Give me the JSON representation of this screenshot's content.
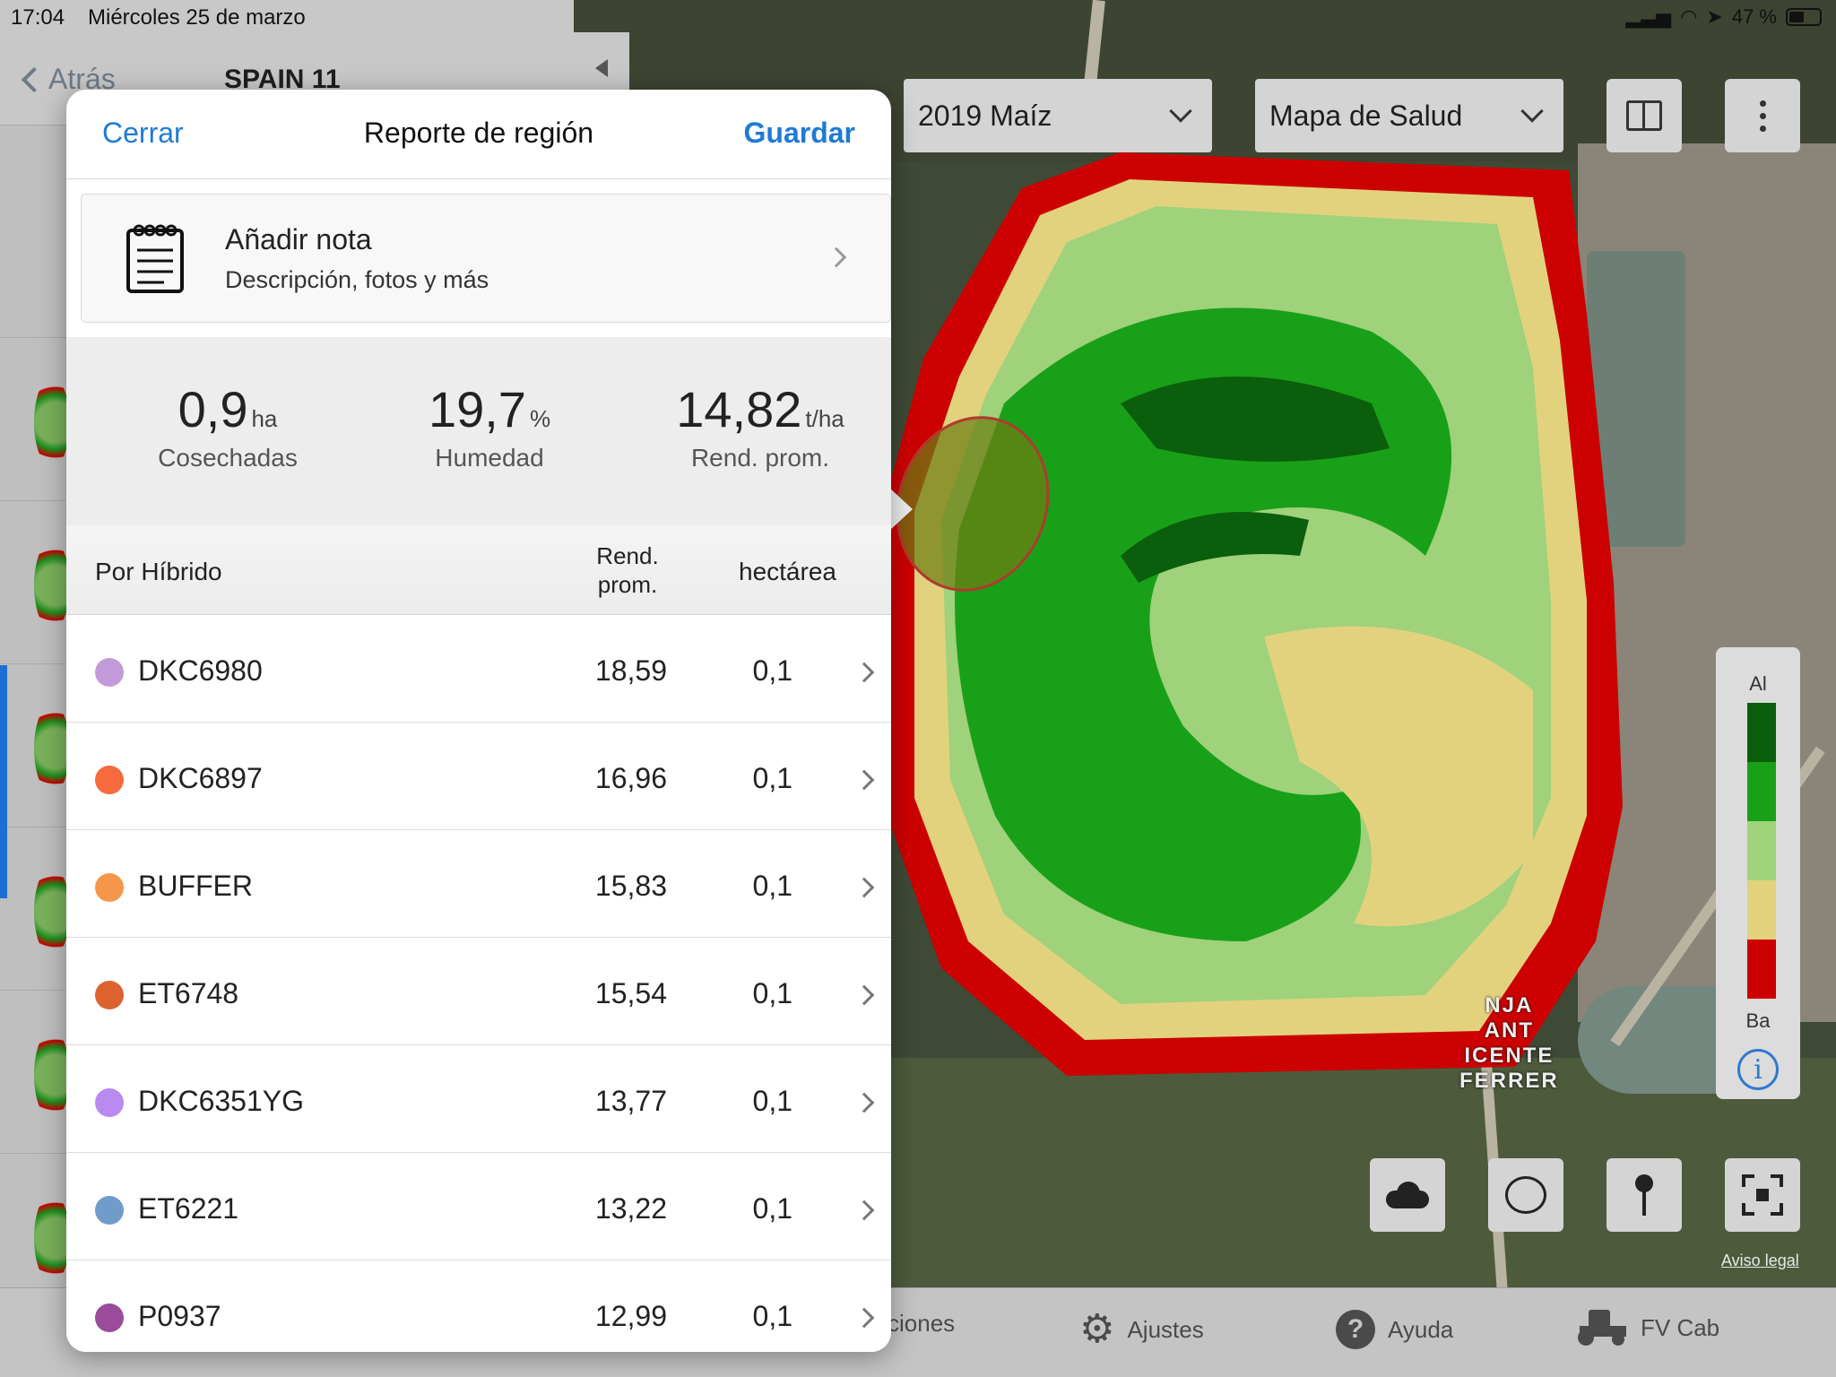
{
  "status_bar": {
    "time": "17:04",
    "date": "Miércoles 25 de marzo",
    "battery": "47 %"
  },
  "left_panel": {
    "back_label": "Atrás",
    "field_name": "SPAIN 11"
  },
  "map_controls": {
    "season_dropdown": "2019 Maíz",
    "layer_dropdown": "Mapa de Salud",
    "split_view_icon": "split-view-icon",
    "more_icon": "more-vertical-icon"
  },
  "legend": {
    "high_label": "Al",
    "low_label": "Ba",
    "info_label": "i",
    "colors": [
      "#0b5e0b",
      "#19a019",
      "#9fd27a",
      "#e2d27e",
      "#cc0000"
    ]
  },
  "map_buttons": {
    "weather_icon": "cloud-icon",
    "lasso_icon": "lasso-icon",
    "pin_icon": "pin-icon",
    "fit_icon": "fit-to-field-icon",
    "legal": "Aviso legal",
    "place_label": [
      "NJA",
      "ANT",
      "ICENTE",
      "FERRER"
    ]
  },
  "tab_bar": {
    "items": [
      {
        "label": "ciones"
      },
      {
        "label": "Ajustes",
        "icon": "gear-icon"
      },
      {
        "label": "Ayuda",
        "icon": "question-icon"
      },
      {
        "label": "FV Cab",
        "icon": "tractor-icon"
      }
    ]
  },
  "modal": {
    "close_label": "Cerrar",
    "title": "Reporte de región",
    "save_label": "Guardar",
    "note": {
      "title": "Añadir nota",
      "subtitle": "Descripción, fotos y más",
      "icon": "notepad-icon"
    },
    "stats": [
      {
        "value": "0,9",
        "unit": "ha",
        "label": "Cosechadas"
      },
      {
        "value": "19,7",
        "unit": "%",
        "label": "Humedad"
      },
      {
        "value": "14,82",
        "unit": "t/ha",
        "label": "Rend. prom."
      }
    ],
    "table": {
      "col_hybrid": "Por Híbrido",
      "col_yield": "Rend. prom.",
      "col_area": "hectárea",
      "rows": [
        {
          "name": "DKC6980",
          "yield": "18,59",
          "area": "0,1",
          "color": "#c39ad9"
        },
        {
          "name": "DKC6897",
          "yield": "16,96",
          "area": "0,1",
          "color": "#f66a3e"
        },
        {
          "name": "BUFFER",
          "yield": "15,83",
          "area": "0,1",
          "color": "#f5964a"
        },
        {
          "name": "ET6748",
          "yield": "15,54",
          "area": "0,1",
          "color": "#dc6330"
        },
        {
          "name": "DKC6351YG",
          "yield": "13,77",
          "area": "0,1",
          "color": "#b98af0"
        },
        {
          "name": "ET6221",
          "yield": "13,22",
          "area": "0,1",
          "color": "#6f9ccb"
        },
        {
          "name": "P0937",
          "yield": "12,99",
          "area": "0,1",
          "color": "#9b4b9b"
        }
      ]
    }
  }
}
